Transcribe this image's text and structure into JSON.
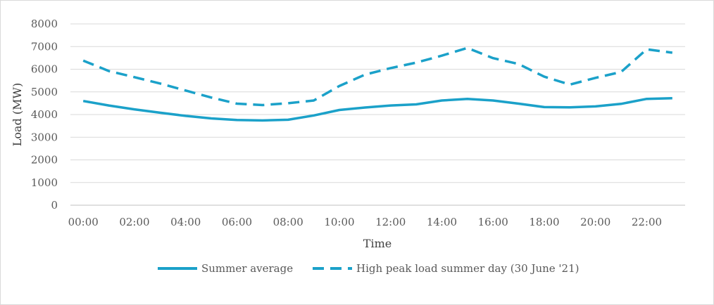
{
  "chart_data": {
    "type": "line",
    "x": [
      "00:00",
      "01:00",
      "02:00",
      "03:00",
      "04:00",
      "05:00",
      "06:00",
      "07:00",
      "08:00",
      "09:00",
      "10:00",
      "11:00",
      "12:00",
      "13:00",
      "14:00",
      "15:00",
      "16:00",
      "17:00",
      "18:00",
      "19:00",
      "20:00",
      "21:00",
      "22:00",
      "23:00"
    ],
    "x_tick_labels": [
      "00:00",
      "02:00",
      "04:00",
      "06:00",
      "08:00",
      "10:00",
      "12:00",
      "14:00",
      "16:00",
      "18:00",
      "20:00",
      "22:00"
    ],
    "series": [
      {
        "name": "Summer average",
        "style": "solid",
        "color": "#1ba1c9",
        "values": [
          4600,
          4400,
          4230,
          4080,
          3940,
          3830,
          3760,
          3740,
          3770,
          3960,
          4200,
          4310,
          4400,
          4450,
          4620,
          4690,
          4620,
          4480,
          4330,
          4320,
          4360,
          4470,
          4690,
          4720
        ]
      },
      {
        "name": "High peak load summer day (30 June '21)",
        "style": "dashed",
        "color": "#1ba1c9",
        "values": [
          6380,
          5920,
          5650,
          5370,
          5060,
          4750,
          4480,
          4420,
          4500,
          4620,
          5260,
          5760,
          6050,
          6290,
          6600,
          6940,
          6490,
          6230,
          5670,
          5320,
          5620,
          5880,
          6880,
          6730
        ]
      }
    ],
    "xlabel": "Time",
    "ylabel": "Load (MW)",
    "ylim": [
      0,
      8000
    ],
    "yticks": [
      0,
      1000,
      2000,
      3000,
      4000,
      5000,
      6000,
      7000,
      8000
    ],
    "grid": true,
    "legend_position": "bottom"
  }
}
